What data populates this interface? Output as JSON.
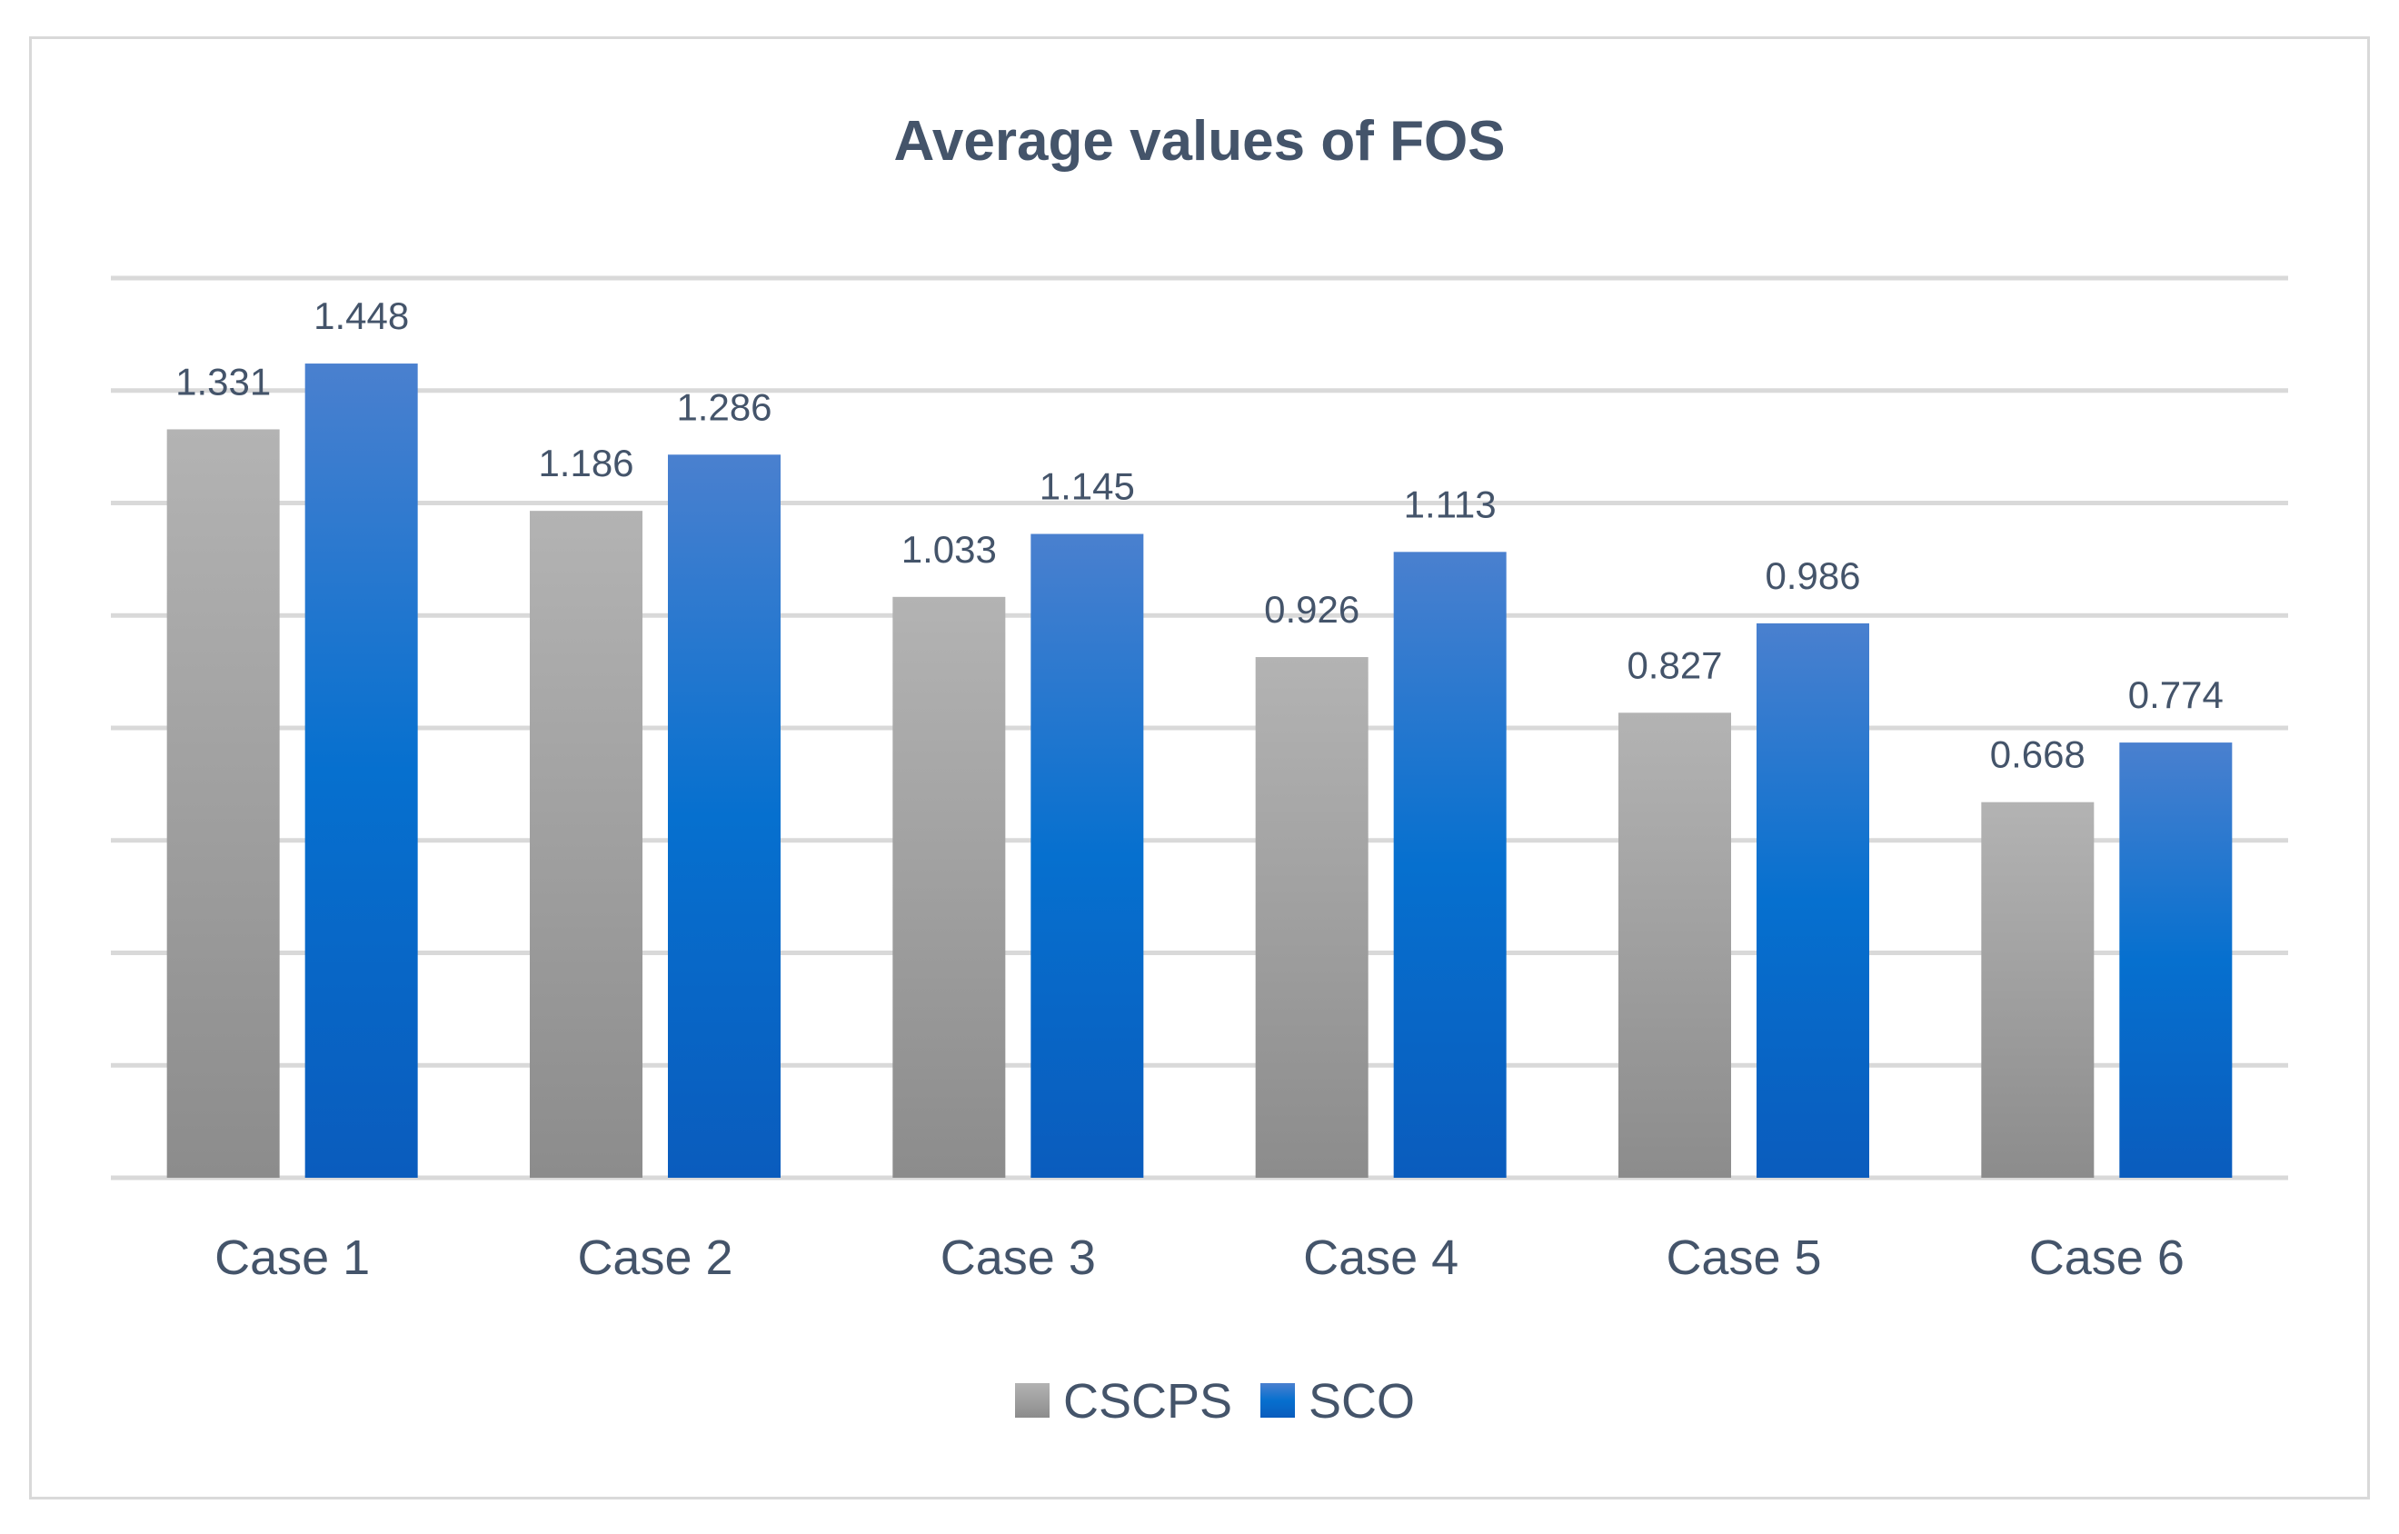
{
  "chart_data": {
    "type": "bar",
    "title": "Average values of FOS",
    "categories": [
      "Case 1",
      "Case 2",
      "Case 3",
      "Case 4",
      "Case 5",
      "Case 6"
    ],
    "series": [
      {
        "name": "CSCPS",
        "values": [
          1.331,
          1.186,
          1.033,
          0.926,
          0.827,
          0.668
        ],
        "value_labels": [
          "1.331",
          "1.186",
          "1.033",
          "0.926",
          "0.827",
          "0.668"
        ],
        "color_top": "#b3b3b3",
        "color_bottom": "#8c8c8c"
      },
      {
        "name": "SCO",
        "values": [
          1.448,
          1.286,
          1.145,
          1.113,
          0.986,
          0.774
        ],
        "value_labels": [
          "1.448",
          "1.286",
          "1.145",
          "1.113",
          "0.986",
          "0.774"
        ],
        "color_top": "#4a80cf",
        "color_bottom": "#0a5cbd"
      }
    ],
    "xlabel": "",
    "ylabel": "",
    "ylim": [
      0,
      1.6
    ],
    "gridlines": 8,
    "grid": true,
    "legend_position": "bottom",
    "data_labels": true
  }
}
